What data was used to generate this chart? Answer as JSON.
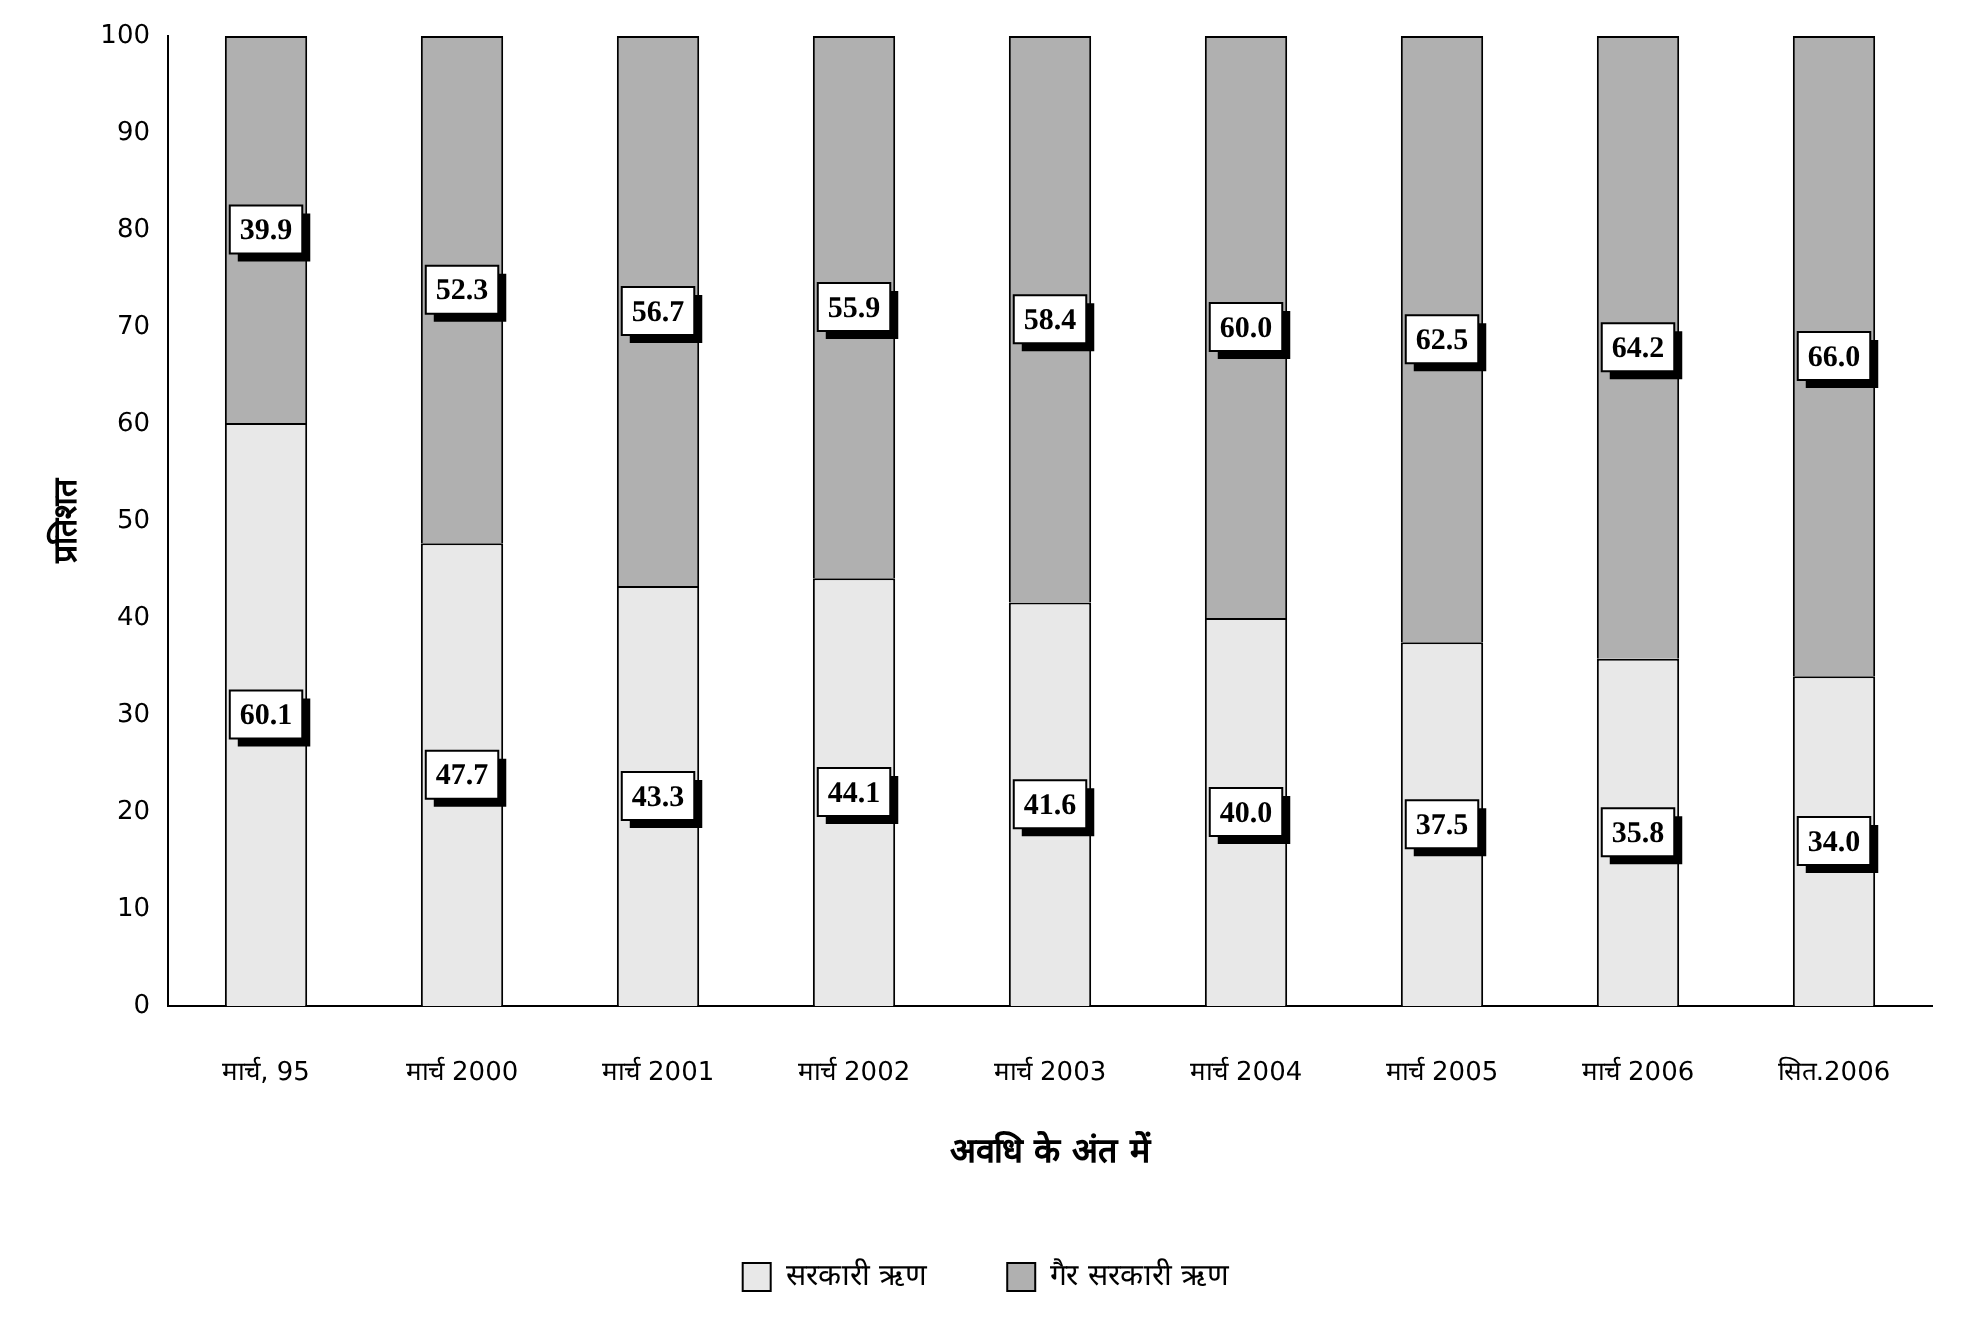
{
  "chart_data": {
    "type": "bar",
    "stacked": true,
    "xlabel": "अवधि के अंत में",
    "ylabel": "प्रतिशत",
    "categories": [
      "मार्च, 95",
      "मार्च 2000",
      "मार्च 2001",
      "मार्च 2002",
      "मार्च 2003",
      "मार्च 2004",
      "मार्च 2005",
      "मार्च 2006",
      "सित.2006"
    ],
    "series": [
      {
        "name": "सरकारी ऋण",
        "color": "#e8e8e8",
        "values": [
          60.1,
          47.7,
          43.3,
          44.1,
          41.6,
          40.0,
          37.5,
          35.8,
          34.0
        ],
        "value_labels": [
          "60.1",
          "47.7",
          "43.3",
          "44.1",
          "41.6",
          "40.0",
          "37.5",
          "35.8",
          "34.0"
        ]
      },
      {
        "name": "गैर सरकारी ऋण",
        "color": "#b0b0b0",
        "values": [
          39.9,
          52.3,
          56.7,
          55.9,
          58.4,
          60.0,
          62.5,
          64.2,
          66.0
        ],
        "value_labels": [
          "39.9",
          "52.3",
          "56.7",
          "55.9",
          "58.4",
          "60.0",
          "62.5",
          "64.2",
          "66.0"
        ]
      }
    ],
    "ylim": [
      0,
      100
    ],
    "yticks": [
      0,
      10,
      20,
      30,
      40,
      50,
      60,
      70,
      80,
      90,
      100
    ],
    "grid": false,
    "legend": "bottom"
  }
}
